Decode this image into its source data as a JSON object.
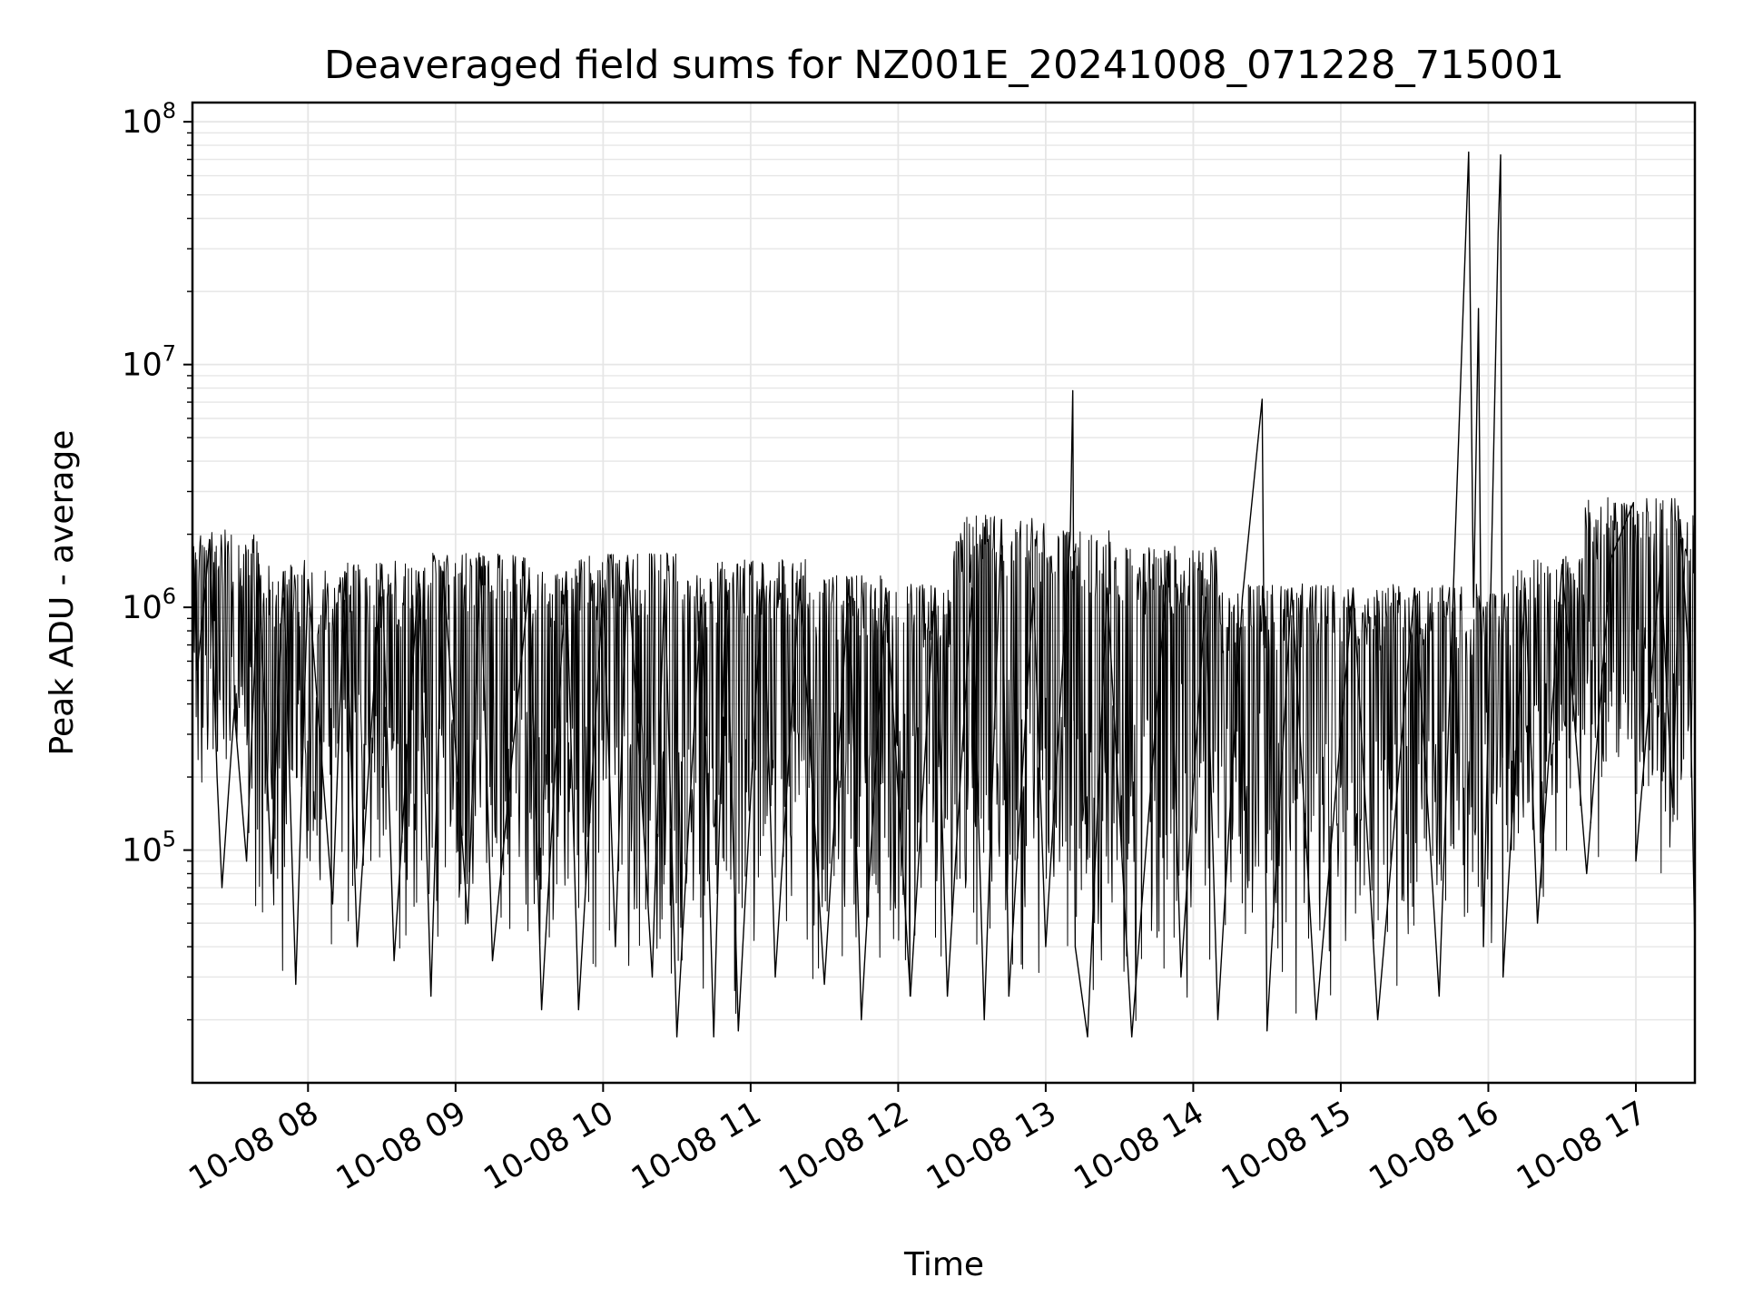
{
  "chart_data": {
    "type": "line",
    "title": "Deaveraged field sums for NZ001E_20241008_071228_715001",
    "xlabel": "Time",
    "ylabel": "Peak ADU - average",
    "yscale": "log",
    "ylim": [
      11000,
      120000000
    ],
    "xlim": [
      "10-08 07:13",
      "10-08 17:24"
    ],
    "grid": true,
    "line_color": "#000000",
    "grid_color": "#e6e6e6",
    "x_ticks": [
      "10-08 08",
      "10-08 09",
      "10-08 10",
      "10-08 11",
      "10-08 12",
      "10-08 13",
      "10-08 14",
      "10-08 15",
      "10-08 16",
      "10-08 17"
    ],
    "y_ticks": [
      {
        "base": "10",
        "exp": "5",
        "value": 100000
      },
      {
        "base": "10",
        "exp": "6",
        "value": 1000000
      },
      {
        "base": "10",
        "exp": "7",
        "value": 10000000
      },
      {
        "base": "10",
        "exp": "8",
        "value": 100000000
      }
    ],
    "series": [
      {
        "points": [
          [
            "10-08 07:13",
            2000000
          ],
          [
            "10-08 07:15",
            550000
          ],
          [
            "10-08 07:20",
            1900000
          ],
          [
            "10-08 07:23",
            200000
          ],
          [
            "10-08 07:25",
            70000
          ],
          [
            "10-08 07:30",
            380000
          ],
          [
            "10-08 07:35",
            90000
          ],
          [
            "10-08 07:40",
            1500000
          ],
          [
            "10-08 07:45",
            80000
          ],
          [
            "10-08 07:50",
            1400000
          ],
          [
            "10-08 07:55",
            28000
          ],
          [
            "10-08 08:00",
            1300000
          ],
          [
            "10-08 08:10",
            60000
          ],
          [
            "10-08 08:15",
            1400000
          ],
          [
            "10-08 08:20",
            40000
          ],
          [
            "10-08 08:30",
            1500000
          ],
          [
            "10-08 08:35",
            35000
          ],
          [
            "10-08 08:45",
            1400000
          ],
          [
            "10-08 08:50",
            25000
          ],
          [
            "10-08 08:55",
            1400000
          ],
          [
            "10-08 09:05",
            50000
          ],
          [
            "10-08 09:10",
            1600000
          ],
          [
            "10-08 09:15",
            35000
          ],
          [
            "10-08 09:30",
            1300000
          ],
          [
            "10-08 09:35",
            22000
          ],
          [
            "10-08 09:45",
            1400000
          ],
          [
            "10-08 09:50",
            22000
          ],
          [
            "10-08 10:00",
            1200000
          ],
          [
            "10-08 10:05",
            40000
          ],
          [
            "10-08 10:10",
            1600000
          ],
          [
            "10-08 10:20",
            30000
          ],
          [
            "10-08 10:25",
            1300000
          ],
          [
            "10-08 10:30",
            17000
          ],
          [
            "10-08 10:40",
            1100000
          ],
          [
            "10-08 10:45",
            17000
          ],
          [
            "10-08 10:50",
            1300000
          ],
          [
            "10-08 10:55",
            18000
          ],
          [
            "10-08 11:05",
            1500000
          ],
          [
            "10-08 11:10",
            30000
          ],
          [
            "10-08 11:20",
            1300000
          ],
          [
            "10-08 11:30",
            28000
          ],
          [
            "10-08 11:40",
            1300000
          ],
          [
            "10-08 11:45",
            20000
          ],
          [
            "10-08 11:55",
            1200000
          ],
          [
            "10-08 12:05",
            25000
          ],
          [
            "10-08 12:15",
            1200000
          ],
          [
            "10-08 12:20",
            25000
          ],
          [
            "10-08 12:30",
            1200000
          ],
          [
            "10-08 12:35",
            20000
          ],
          [
            "10-08 12:42",
            2300000
          ],
          [
            "10-08 12:45",
            25000
          ],
          [
            "10-08 12:55",
            1200000
          ],
          [
            "10-08 13:00",
            40000
          ],
          [
            "10-08 13:10",
            2000000
          ],
          [
            "10-08 13:11",
            7800000
          ],
          [
            "10-08 13:12",
            40000
          ],
          [
            "10-08 13:17",
            17000
          ],
          [
            "10-08 13:25",
            1200000
          ],
          [
            "10-08 13:35",
            17000
          ],
          [
            "10-08 13:50",
            1700000
          ],
          [
            "10-08 13:55",
            30000
          ],
          [
            "10-08 14:05",
            1100000
          ],
          [
            "10-08 14:10",
            20000
          ],
          [
            "10-08 14:20",
            1100000
          ],
          [
            "10-08 14:28",
            7200000
          ],
          [
            "10-08 14:30",
            18000
          ],
          [
            "10-08 14:40",
            1200000
          ],
          [
            "10-08 14:50",
            20000
          ],
          [
            "10-08 15:05",
            1200000
          ],
          [
            "10-08 15:15",
            20000
          ],
          [
            "10-08 15:30",
            1200000
          ],
          [
            "10-08 15:40",
            25000
          ],
          [
            "10-08 15:52",
            75000000
          ],
          [
            "10-08 15:54",
            1000000
          ],
          [
            "10-08 15:56",
            17000000
          ],
          [
            "10-08 15:58",
            40000
          ],
          [
            "10-08 16:04",
            35000000
          ],
          [
            "10-08 16:05",
            73000000
          ],
          [
            "10-08 16:06",
            30000
          ],
          [
            "10-08 16:15",
            1200000
          ],
          [
            "10-08 16:20",
            50000
          ],
          [
            "10-08 16:30",
            1500000
          ],
          [
            "10-08 16:40",
            80000
          ],
          [
            "10-08 16:50",
            1600000
          ],
          [
            "10-08 16:59",
            2700000
          ],
          [
            "10-08 17:00",
            90000
          ],
          [
            "10-08 17:10",
            1500000
          ],
          [
            "10-08 17:15",
            150000
          ],
          [
            "10-08 17:18",
            2300000
          ],
          [
            "10-08 17:22",
            500000
          ],
          [
            "10-08 17:24",
            40000
          ]
        ]
      }
    ]
  }
}
